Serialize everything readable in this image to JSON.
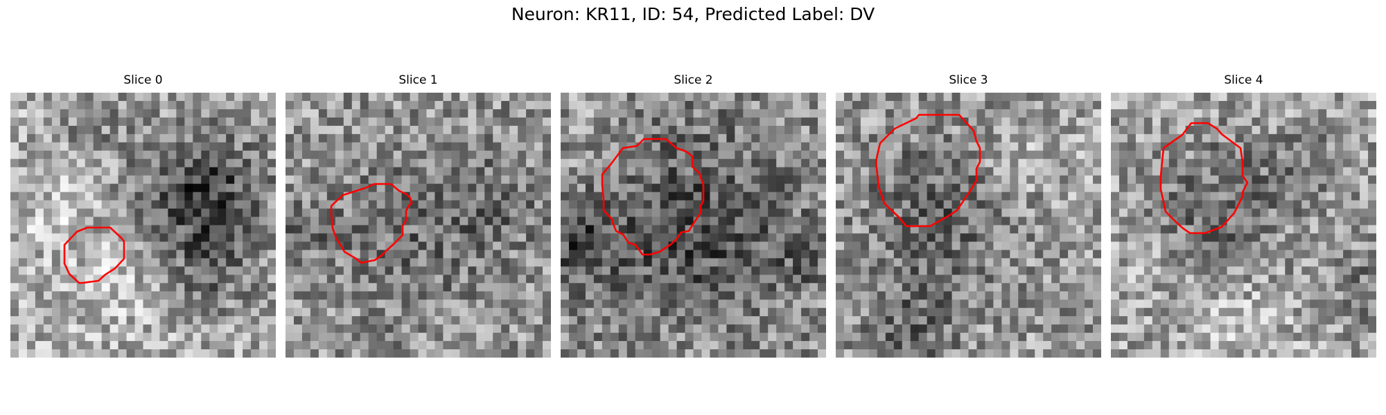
{
  "figure": {
    "title": "Neuron: KR11, ID: 54, Predicted Label: DV"
  },
  "contour_color": "#ff0000",
  "colormap": "gray",
  "panels": [
    {
      "title": "Slice 0"
    },
    {
      "title": "Slice 1"
    },
    {
      "title": "Slice 2"
    },
    {
      "title": "Slice 3"
    },
    {
      "title": "Slice 4"
    }
  ]
}
